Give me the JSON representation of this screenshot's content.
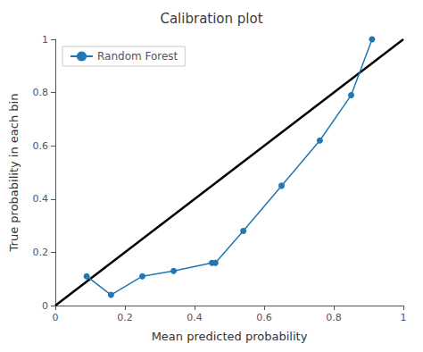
{
  "chart_data": {
    "type": "line",
    "title": "Calibration plot",
    "xlabel": "Mean predicted probability",
    "ylabel": "True probability in each bin",
    "series": [
      {
        "color": "black",
        "x": [
          0,
          1
        ],
        "values": [
          0,
          1
        ]
      },
      {
        "name": "Random Forest",
        "color": "#1f77b4",
        "marker": "circle",
        "x": [
          0.09,
          0.16,
          0.25,
          0.34,
          0.45,
          0.46,
          0.54,
          0.65,
          0.76,
          0.85,
          0.91
        ],
        "values": [
          0.11,
          0.04,
          0.11,
          0.13,
          0.16,
          0.16,
          0.28,
          0.45,
          0.62,
          0.79,
          1.0
        ]
      }
    ],
    "xlim": [
      0.0,
      1.0
    ],
    "ylim": [
      0.0,
      1.0
    ],
    "xticks": [
      0.0,
      0.2,
      0.4,
      0.6,
      0.8,
      1.0
    ],
    "yticks": [
      0.0,
      0.2,
      0.4,
      0.6,
      0.8,
      1.0
    ],
    "legend": "upper left",
    "grid": false
  }
}
